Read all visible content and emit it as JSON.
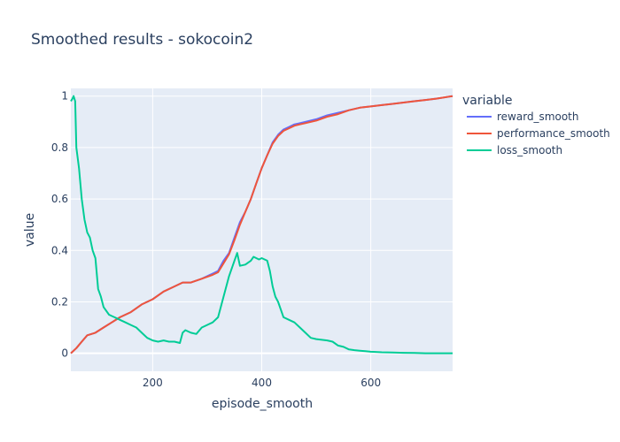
{
  "chart_data": {
    "type": "line",
    "title": "Smoothed results - sokocoin2",
    "xlabel": "episode_smooth",
    "ylabel": "value",
    "xlim": [
      50,
      750
    ],
    "ylim": [
      -0.07,
      1.03
    ],
    "xticks": [
      200,
      400,
      600
    ],
    "yticks": [
      0,
      0.2,
      0.4,
      0.6,
      0.8,
      1
    ],
    "ytick_labels": [
      "0",
      "0.2",
      "0.4",
      "0.6",
      "0.8",
      "1"
    ],
    "xtick_labels": [
      "200",
      "400",
      "600"
    ],
    "grid": true,
    "legend_position": "right",
    "legend_title": "variable",
    "series": [
      {
        "name": "reward_smooth",
        "color": "#636efa",
        "points": [
          [
            50,
            0.0
          ],
          [
            60,
            0.02
          ],
          [
            70,
            0.045
          ],
          [
            80,
            0.07
          ],
          [
            95,
            0.08
          ],
          [
            110,
            0.1
          ],
          [
            125,
            0.12
          ],
          [
            140,
            0.14
          ],
          [
            160,
            0.16
          ],
          [
            180,
            0.19
          ],
          [
            200,
            0.21
          ],
          [
            220,
            0.24
          ],
          [
            240,
            0.26
          ],
          [
            255,
            0.275
          ],
          [
            270,
            0.275
          ],
          [
            290,
            0.29
          ],
          [
            310,
            0.31
          ],
          [
            320,
            0.32
          ],
          [
            330,
            0.36
          ],
          [
            340,
            0.39
          ],
          [
            350,
            0.45
          ],
          [
            360,
            0.51
          ],
          [
            370,
            0.55
          ],
          [
            380,
            0.6
          ],
          [
            390,
            0.66
          ],
          [
            400,
            0.72
          ],
          [
            410,
            0.77
          ],
          [
            420,
            0.82
          ],
          [
            430,
            0.85
          ],
          [
            440,
            0.87
          ],
          [
            450,
            0.88
          ],
          [
            460,
            0.89
          ],
          [
            470,
            0.895
          ],
          [
            480,
            0.9
          ],
          [
            500,
            0.91
          ],
          [
            520,
            0.925
          ],
          [
            540,
            0.935
          ],
          [
            560,
            0.945
          ],
          [
            580,
            0.955
          ],
          [
            600,
            0.96
          ],
          [
            620,
            0.965
          ],
          [
            640,
            0.97
          ],
          [
            660,
            0.975
          ],
          [
            680,
            0.98
          ],
          [
            700,
            0.985
          ],
          [
            720,
            0.99
          ],
          [
            750,
            1.0
          ]
        ]
      },
      {
        "name": "performance_smooth",
        "color": "#ef553b",
        "points": [
          [
            50,
            0.0
          ],
          [
            60,
            0.02
          ],
          [
            70,
            0.045
          ],
          [
            80,
            0.07
          ],
          [
            95,
            0.08
          ],
          [
            110,
            0.1
          ],
          [
            125,
            0.12
          ],
          [
            140,
            0.14
          ],
          [
            160,
            0.16
          ],
          [
            180,
            0.19
          ],
          [
            200,
            0.21
          ],
          [
            220,
            0.24
          ],
          [
            240,
            0.26
          ],
          [
            255,
            0.275
          ],
          [
            270,
            0.275
          ],
          [
            290,
            0.29
          ],
          [
            310,
            0.305
          ],
          [
            320,
            0.315
          ],
          [
            330,
            0.35
          ],
          [
            340,
            0.385
          ],
          [
            350,
            0.44
          ],
          [
            360,
            0.5
          ],
          [
            370,
            0.55
          ],
          [
            380,
            0.6
          ],
          [
            390,
            0.66
          ],
          [
            400,
            0.72
          ],
          [
            410,
            0.77
          ],
          [
            420,
            0.815
          ],
          [
            430,
            0.845
          ],
          [
            440,
            0.865
          ],
          [
            450,
            0.875
          ],
          [
            460,
            0.885
          ],
          [
            470,
            0.89
          ],
          [
            480,
            0.895
          ],
          [
            500,
            0.905
          ],
          [
            520,
            0.92
          ],
          [
            540,
            0.93
          ],
          [
            560,
            0.945
          ],
          [
            580,
            0.955
          ],
          [
            600,
            0.96
          ],
          [
            620,
            0.965
          ],
          [
            640,
            0.97
          ],
          [
            660,
            0.975
          ],
          [
            680,
            0.98
          ],
          [
            700,
            0.985
          ],
          [
            720,
            0.99
          ],
          [
            750,
            1.0
          ]
        ]
      },
      {
        "name": "loss_smooth",
        "color": "#00cc96",
        "points": [
          [
            50,
            0.98
          ],
          [
            53,
            0.99
          ],
          [
            55,
            1.0
          ],
          [
            58,
            0.98
          ],
          [
            60,
            0.8
          ],
          [
            65,
            0.72
          ],
          [
            70,
            0.6
          ],
          [
            75,
            0.52
          ],
          [
            80,
            0.47
          ],
          [
            85,
            0.45
          ],
          [
            90,
            0.4
          ],
          [
            95,
            0.37
          ],
          [
            100,
            0.25
          ],
          [
            105,
            0.22
          ],
          [
            110,
            0.18
          ],
          [
            120,
            0.15
          ],
          [
            130,
            0.14
          ],
          [
            140,
            0.13
          ],
          [
            150,
            0.12
          ],
          [
            160,
            0.11
          ],
          [
            170,
            0.1
          ],
          [
            180,
            0.08
          ],
          [
            190,
            0.06
          ],
          [
            200,
            0.05
          ],
          [
            210,
            0.045
          ],
          [
            220,
            0.05
          ],
          [
            230,
            0.045
          ],
          [
            240,
            0.045
          ],
          [
            250,
            0.04
          ],
          [
            255,
            0.08
          ],
          [
            260,
            0.09
          ],
          [
            270,
            0.08
          ],
          [
            280,
            0.075
          ],
          [
            290,
            0.1
          ],
          [
            300,
            0.11
          ],
          [
            310,
            0.12
          ],
          [
            320,
            0.14
          ],
          [
            330,
            0.22
          ],
          [
            340,
            0.3
          ],
          [
            350,
            0.36
          ],
          [
            355,
            0.39
          ],
          [
            360,
            0.34
          ],
          [
            370,
            0.345
          ],
          [
            380,
            0.36
          ],
          [
            385,
            0.375
          ],
          [
            390,
            0.37
          ],
          [
            395,
            0.365
          ],
          [
            400,
            0.37
          ],
          [
            410,
            0.36
          ],
          [
            415,
            0.32
          ],
          [
            420,
            0.26
          ],
          [
            425,
            0.22
          ],
          [
            430,
            0.2
          ],
          [
            440,
            0.14
          ],
          [
            450,
            0.13
          ],
          [
            460,
            0.12
          ],
          [
            470,
            0.1
          ],
          [
            480,
            0.08
          ],
          [
            490,
            0.06
          ],
          [
            500,
            0.055
          ],
          [
            520,
            0.05
          ],
          [
            530,
            0.045
          ],
          [
            540,
            0.03
          ],
          [
            550,
            0.025
          ],
          [
            560,
            0.015
          ],
          [
            570,
            0.012
          ],
          [
            580,
            0.01
          ],
          [
            590,
            0.008
          ],
          [
            600,
            0.006
          ],
          [
            620,
            0.004
          ],
          [
            640,
            0.003
          ],
          [
            660,
            0.002
          ],
          [
            680,
            0.001
          ],
          [
            700,
            0.0
          ],
          [
            750,
            0.0
          ]
        ]
      }
    ]
  }
}
